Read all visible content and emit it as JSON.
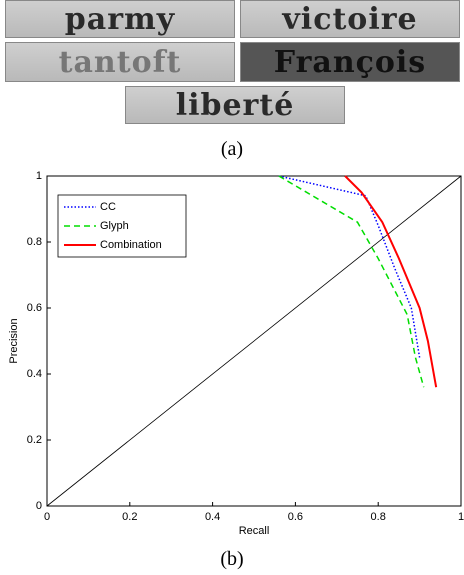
{
  "figure": {
    "words": [
      "parmy",
      "victoire",
      "tantoft",
      "François",
      "liberté"
    ],
    "caption_a": "(a)",
    "caption_b": "(b)"
  },
  "chart_data": {
    "type": "line",
    "xlabel": "Recall",
    "ylabel": "Precision",
    "xlim": [
      0,
      1
    ],
    "ylim": [
      0,
      1
    ],
    "xticks": [
      0,
      0.2,
      0.4,
      0.6,
      0.8,
      1
    ],
    "yticks": [
      0,
      0.2,
      0.4,
      0.6,
      0.8,
      1
    ],
    "legend": "upper left",
    "series": [
      {
        "name": "CC",
        "color": "#0000ff",
        "style": "dotted",
        "x": [
          0.56,
          0.77,
          0.8,
          0.84,
          0.88,
          0.9
        ],
        "values": [
          1,
          0.94,
          0.85,
          0.72,
          0.6,
          0.45
        ]
      },
      {
        "name": "Glyph",
        "color": "#00dd00",
        "style": "dashed",
        "x": [
          0.56,
          0.75,
          0.8,
          0.87,
          0.89,
          0.91
        ],
        "values": [
          1,
          0.86,
          0.75,
          0.58,
          0.45,
          0.36
        ]
      },
      {
        "name": "Combination",
        "color": "#ff0000",
        "style": "solid",
        "x": [
          0.72,
          0.76,
          0.81,
          0.85,
          0.9,
          0.92,
          0.94
        ],
        "values": [
          1,
          0.95,
          0.86,
          0.75,
          0.6,
          0.5,
          0.36
        ]
      }
    ]
  }
}
